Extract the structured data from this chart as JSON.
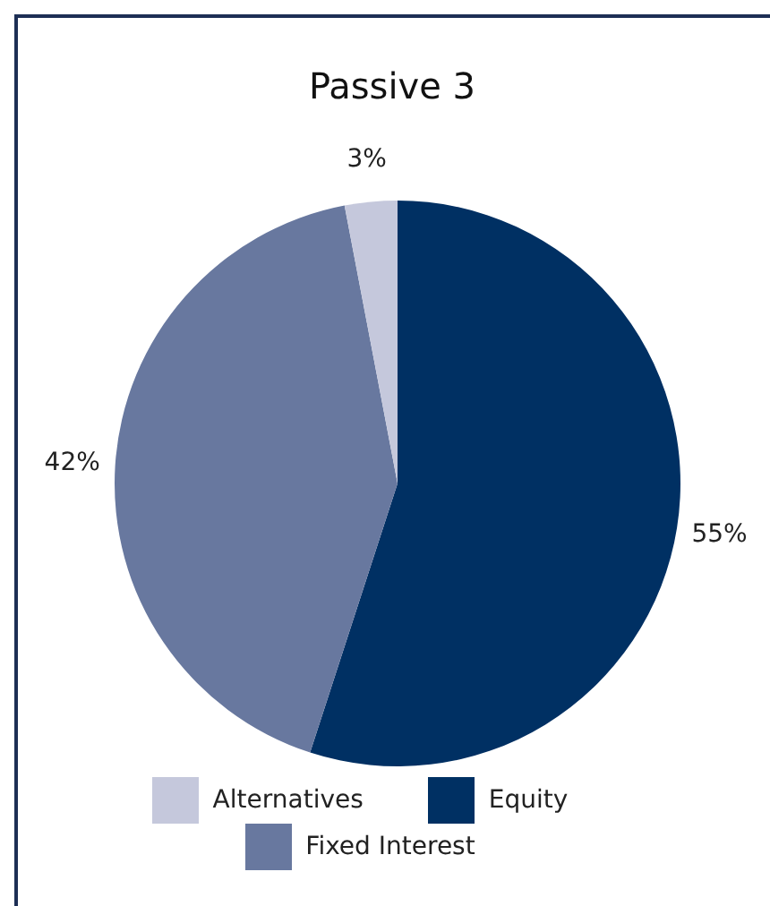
{
  "chart_data": {
    "type": "pie",
    "title": "Passive 3",
    "categories": [
      "Equity",
      "Fixed Interest",
      "Alternatives"
    ],
    "values": [
      55,
      42,
      3
    ],
    "colors": [
      "#003063",
      "#68789f",
      "#c5c8dc"
    ],
    "value_labels": [
      "55%",
      "42%",
      "3%"
    ],
    "legend": "bottom"
  }
}
